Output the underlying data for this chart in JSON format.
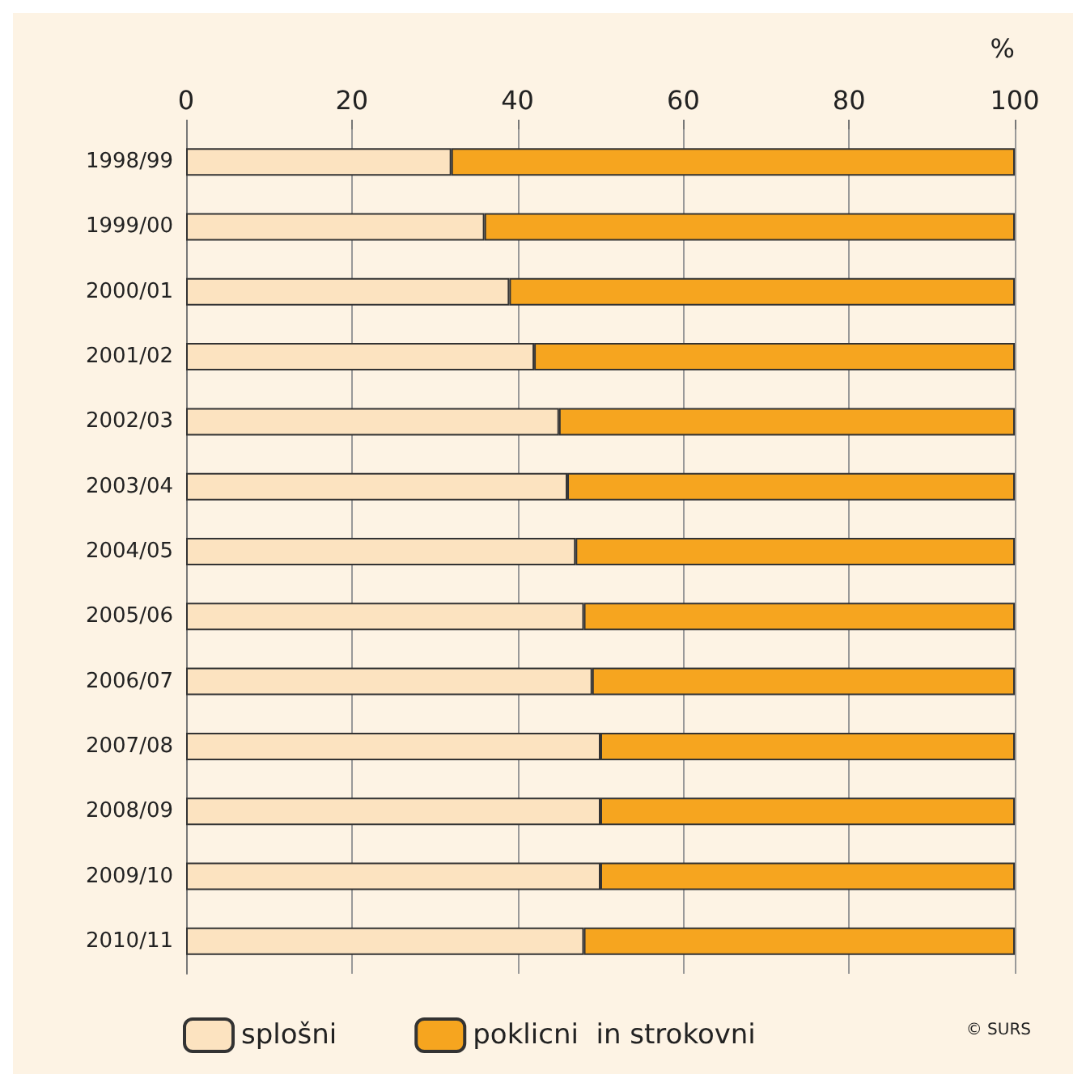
{
  "chart_data": {
    "type": "bar",
    "orientation": "horizontal",
    "stacked": true,
    "xlabel": "%",
    "categories": [
      "1998/99",
      "1999/00",
      "2000/01",
      "2001/02",
      "2002/03",
      "2003/04",
      "2004/05",
      "2005/06",
      "2006/07",
      "2007/08",
      "2008/09",
      "2009/10",
      "2010/11"
    ],
    "series": [
      {
        "name": "splošni",
        "color": "#fce3c0",
        "values": [
          32,
          36,
          39,
          42,
          45,
          46,
          47,
          48,
          49,
          50,
          50,
          50,
          48
        ]
      },
      {
        "name": "poklicni  in strokovni",
        "color": "#f6a51f",
        "values": [
          68,
          64,
          61,
          58,
          55,
          54,
          53,
          52,
          51,
          50,
          50,
          50,
          52
        ]
      }
    ],
    "xlim": [
      0,
      100
    ],
    "xticks": [
      0,
      20,
      40,
      60,
      80,
      100
    ],
    "grid": "x",
    "legend": "bottom left",
    "annotations": [
      "© SURS"
    ]
  }
}
